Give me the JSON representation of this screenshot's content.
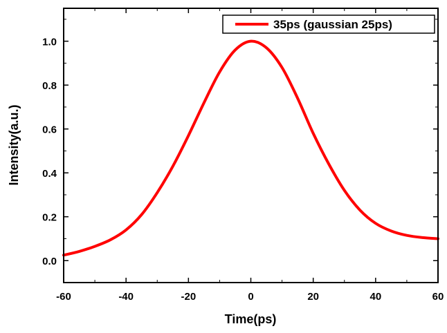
{
  "chart_data": {
    "type": "line",
    "title": "",
    "xlabel": "Time(ps)",
    "ylabel": "Intensity(a.u.)",
    "xlim": [
      -60,
      60
    ],
    "ylim": [
      -0.1,
      1.15
    ],
    "x_ticks": [
      -60,
      -40,
      -20,
      0,
      20,
      40,
      60
    ],
    "x_tick_labels": [
      "-60",
      "-40",
      "-20",
      "0",
      "20",
      "40",
      "60"
    ],
    "y_ticks": [
      0.0,
      0.2,
      0.4,
      0.6,
      0.8,
      1.0
    ],
    "y_tick_labels": [
      "0.0",
      "0.2",
      "0.4",
      "0.6",
      "0.8",
      "1.0"
    ],
    "grid": false,
    "legend_position": "top-right",
    "series": [
      {
        "name": "35ps (gaussian 25ps)",
        "color": "#ff0000",
        "x": [
          -60,
          -55,
          -50,
          -45,
          -40,
          -35,
          -30,
          -25,
          -20,
          -15,
          -10,
          -5,
          0,
          5,
          10,
          15,
          20,
          25,
          30,
          35,
          40,
          45,
          50,
          55,
          60
        ],
        "y": [
          0.025,
          0.042,
          0.065,
          0.095,
          0.14,
          0.21,
          0.31,
          0.43,
          0.57,
          0.72,
          0.86,
          0.96,
          1.0,
          0.97,
          0.88,
          0.74,
          0.58,
          0.44,
          0.32,
          0.23,
          0.17,
          0.135,
          0.115,
          0.105,
          0.1
        ]
      }
    ]
  }
}
